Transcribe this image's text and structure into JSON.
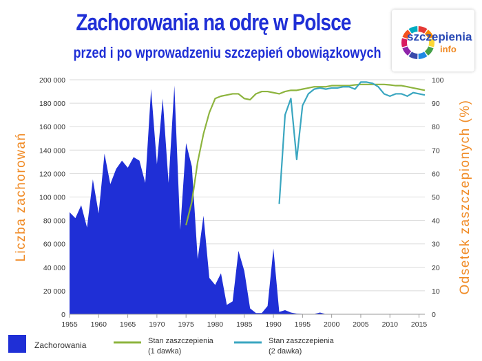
{
  "header": {
    "title": "Zachorowania na odrę w Polsce",
    "subtitle": "przed i po wprowadzeniu szczepień obowiązkowych"
  },
  "logo": {
    "line1": "szczepienia",
    "line2": "info"
  },
  "colors": {
    "title": "#1f2fd6",
    "cases_fill": "#1f2fd6",
    "dose1": "#8db43e",
    "dose2": "#3aa6c0",
    "axis_label": "#f08a24"
  },
  "chart_data": {
    "type": "area",
    "xlim": [
      1955,
      2016
    ],
    "x_ticks": [
      "1955",
      "1960",
      "1965",
      "1970",
      "1975",
      "1980",
      "1985",
      "1990",
      "1995",
      "2000",
      "2005",
      "2010",
      "2015"
    ],
    "ylabel": "Liczba zachorowań",
    "ylim": [
      0,
      200000
    ],
    "y_ticks": [
      "0",
      "20 000",
      "40 000",
      "60 000",
      "80 000",
      "100 000",
      "120 000",
      "140 000",
      "160 000",
      "180 000",
      "200 000"
    ],
    "y2label": "Odsetek zaszczepionych (%)",
    "y2lim": [
      0,
      100
    ],
    "y2_ticks": [
      "0",
      "10",
      "20",
      "30",
      "40",
      "50",
      "60",
      "70",
      "80",
      "90",
      "100"
    ],
    "grid": true,
    "series": [
      {
        "name": "Zachorowania",
        "kind": "area",
        "axis": "left",
        "x": [
          1955,
          1956,
          1957,
          1958,
          1959,
          1960,
          1961,
          1962,
          1963,
          1964,
          1965,
          1966,
          1967,
          1968,
          1969,
          1970,
          1971,
          1972,
          1973,
          1974,
          1975,
          1976,
          1977,
          1978,
          1979,
          1980,
          1981,
          1982,
          1983,
          1984,
          1985,
          1986,
          1987,
          1988,
          1989,
          1990,
          1991,
          1992,
          1993,
          1994,
          1995,
          1996,
          1997,
          1998,
          1999,
          2000,
          2001,
          2002,
          2003,
          2004,
          2005,
          2006,
          2007,
          2008,
          2009,
          2010,
          2011,
          2012,
          2013,
          2014,
          2015,
          2016
        ],
        "y": [
          87000,
          82000,
          93000,
          74000,
          115000,
          86000,
          137000,
          111000,
          124000,
          131000,
          125000,
          134000,
          131000,
          112000,
          192000,
          128000,
          184000,
          112000,
          195000,
          72000,
          146000,
          126000,
          47000,
          84000,
          31000,
          25000,
          35000,
          8000,
          11000,
          54000,
          37000,
          5000,
          1000,
          1000,
          7000,
          56000,
          2000,
          3500,
          1500,
          500,
          300,
          200,
          200,
          1500,
          100,
          100,
          0,
          0,
          0,
          0,
          0,
          0,
          0,
          0,
          0,
          0,
          0,
          0,
          0,
          0,
          0,
          0
        ]
      },
      {
        "name": "Stan zaszczepienia\n(1 dawka)",
        "legend_lines": [
          "Stan zaszczepienia",
          "(1 dawka)"
        ],
        "kind": "line",
        "axis": "right",
        "x": [
          1975,
          1976,
          1977,
          1978,
          1979,
          1980,
          1981,
          1982,
          1983,
          1984,
          1985,
          1986,
          1987,
          1988,
          1989,
          1990,
          1991,
          1992,
          1993,
          1994,
          1995,
          1996,
          1997,
          1998,
          1999,
          2000,
          2001,
          2002,
          2003,
          2004,
          2005,
          2006,
          2007,
          2008,
          2009,
          2010,
          2011,
          2012,
          2013,
          2014,
          2015,
          2016
        ],
        "y": [
          38,
          48,
          65,
          77,
          86,
          92,
          93,
          93.5,
          94,
          94,
          92,
          91.5,
          94,
          95,
          95,
          94.5,
          94,
          95,
          95.5,
          95.5,
          96,
          96.5,
          97,
          97,
          97,
          97.5,
          97.5,
          97.5,
          97.5,
          97.8,
          98,
          98,
          98,
          98,
          98,
          97.8,
          97.5,
          97.5,
          97,
          96.5,
          96,
          95.5
        ]
      },
      {
        "name": "Stan zaszczepienia\n(2 dawka)",
        "legend_lines": [
          "Stan zaszczepienia",
          "(2 dawka)"
        ],
        "kind": "line",
        "axis": "right",
        "x": [
          1991,
          1992,
          1993,
          1994,
          1995,
          1996,
          1997,
          1998,
          1999,
          2000,
          2001,
          2002,
          2003,
          2004,
          2005,
          2006,
          2007,
          2008,
          2009,
          2010,
          2011,
          2012,
          2013,
          2014,
          2015,
          2016
        ],
        "y": [
          47,
          85,
          92,
          66,
          89,
          94,
          96,
          96.5,
          96,
          96.5,
          96.5,
          97,
          97,
          96,
          99,
          99,
          98.5,
          97,
          94,
          93,
          94,
          94,
          93,
          94.5,
          94,
          93.5
        ]
      }
    ]
  }
}
